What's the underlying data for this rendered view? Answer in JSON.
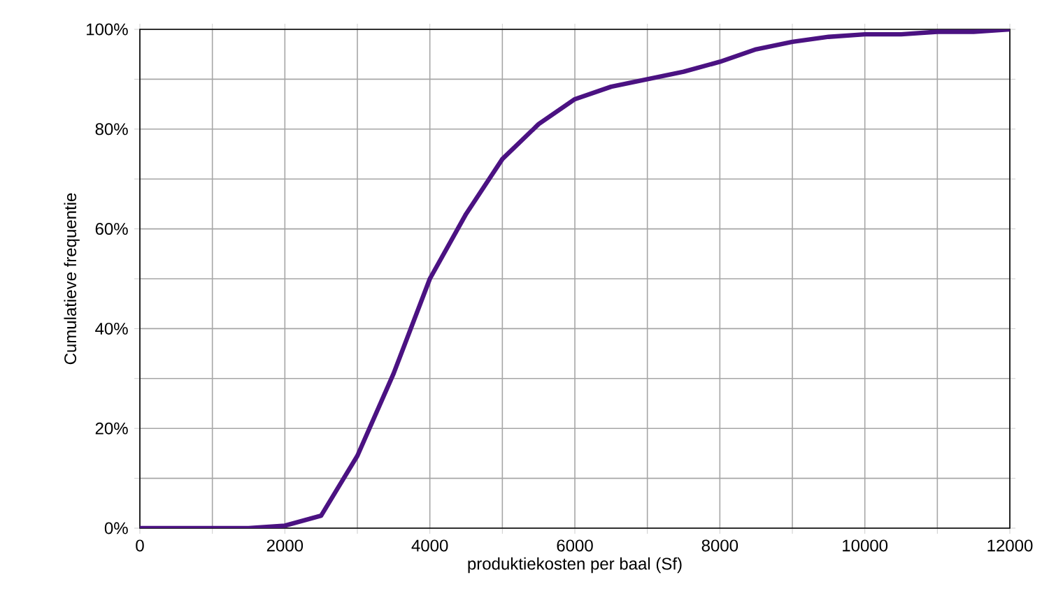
{
  "chart_data": {
    "type": "line",
    "xlabel": "produktiekosten per baal (Sf)",
    "ylabel": "Cumulatieve frequentie",
    "x": [
      0,
      500,
      1000,
      1500,
      2000,
      2500,
      3000,
      3500,
      4000,
      4500,
      5000,
      5500,
      6000,
      6500,
      7000,
      7500,
      8000,
      8500,
      9000,
      9500,
      10000,
      10500,
      11000,
      11500,
      12000
    ],
    "series": [
      {
        "color": "#4b1282",
        "values": [
          0,
          0,
          0,
          0,
          0.5,
          2.5,
          14.5,
          31,
          50,
          63,
          74,
          81,
          86,
          88.5,
          90,
          91.5,
          93.5,
          96,
          97.5,
          98.5,
          99,
          99,
          99.5,
          99.5,
          100
        ]
      }
    ],
    "xlim": [
      0,
      12000
    ],
    "ylim": [
      0,
      100
    ],
    "xticks": [
      0,
      {
        "value": 1000,
        "label": null
      },
      2000,
      {
        "value": 3000,
        "label": null
      },
      4000,
      {
        "value": 5000,
        "label": null
      },
      6000,
      {
        "value": 7000,
        "label": null
      },
      8000,
      {
        "value": 9000,
        "label": null
      },
      10000,
      {
        "value": 11000,
        "label": null
      },
      12000
    ],
    "yticks": [
      {
        "value": 0,
        "label": "0%"
      },
      {
        "value": 10,
        "label": null
      },
      {
        "value": 20,
        "label": "20%"
      },
      {
        "value": 30,
        "label": null
      },
      {
        "value": 40,
        "label": "40%"
      },
      {
        "value": 50,
        "label": null
      },
      {
        "value": 60,
        "label": "60%"
      },
      {
        "value": 70,
        "label": null
      },
      {
        "value": 80,
        "label": "80%"
      },
      {
        "value": 90,
        "label": null
      },
      {
        "value": 100,
        "label": "100%"
      }
    ],
    "grid": true,
    "marker": "none",
    "line_style": "solid"
  }
}
